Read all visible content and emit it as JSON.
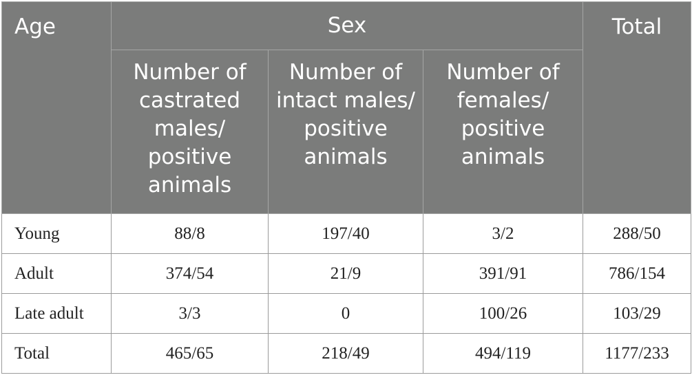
{
  "header": {
    "age": "Age",
    "sex": "Sex",
    "total": "Total",
    "sub": [
      "Number of castrated males/ positive animals",
      "Number of intact males/ positive animals",
      "Number of females/ positive animals"
    ]
  },
  "rows": [
    {
      "label": "Young",
      "castrated": "88/8",
      "intact": "197/40",
      "females": "3/2",
      "total": "288/50"
    },
    {
      "label": "Adult",
      "castrated": "374/54",
      "intact": "21/9",
      "females": "391/91",
      "total": "786/154"
    },
    {
      "label": "Late adult",
      "castrated": "3/3",
      "intact": "0",
      "females": "100/26",
      "total": "103/29"
    },
    {
      "label": "Total",
      "castrated": "465/65",
      "intact": "218/49",
      "females": "494/119",
      "total": "1177/233"
    }
  ]
}
